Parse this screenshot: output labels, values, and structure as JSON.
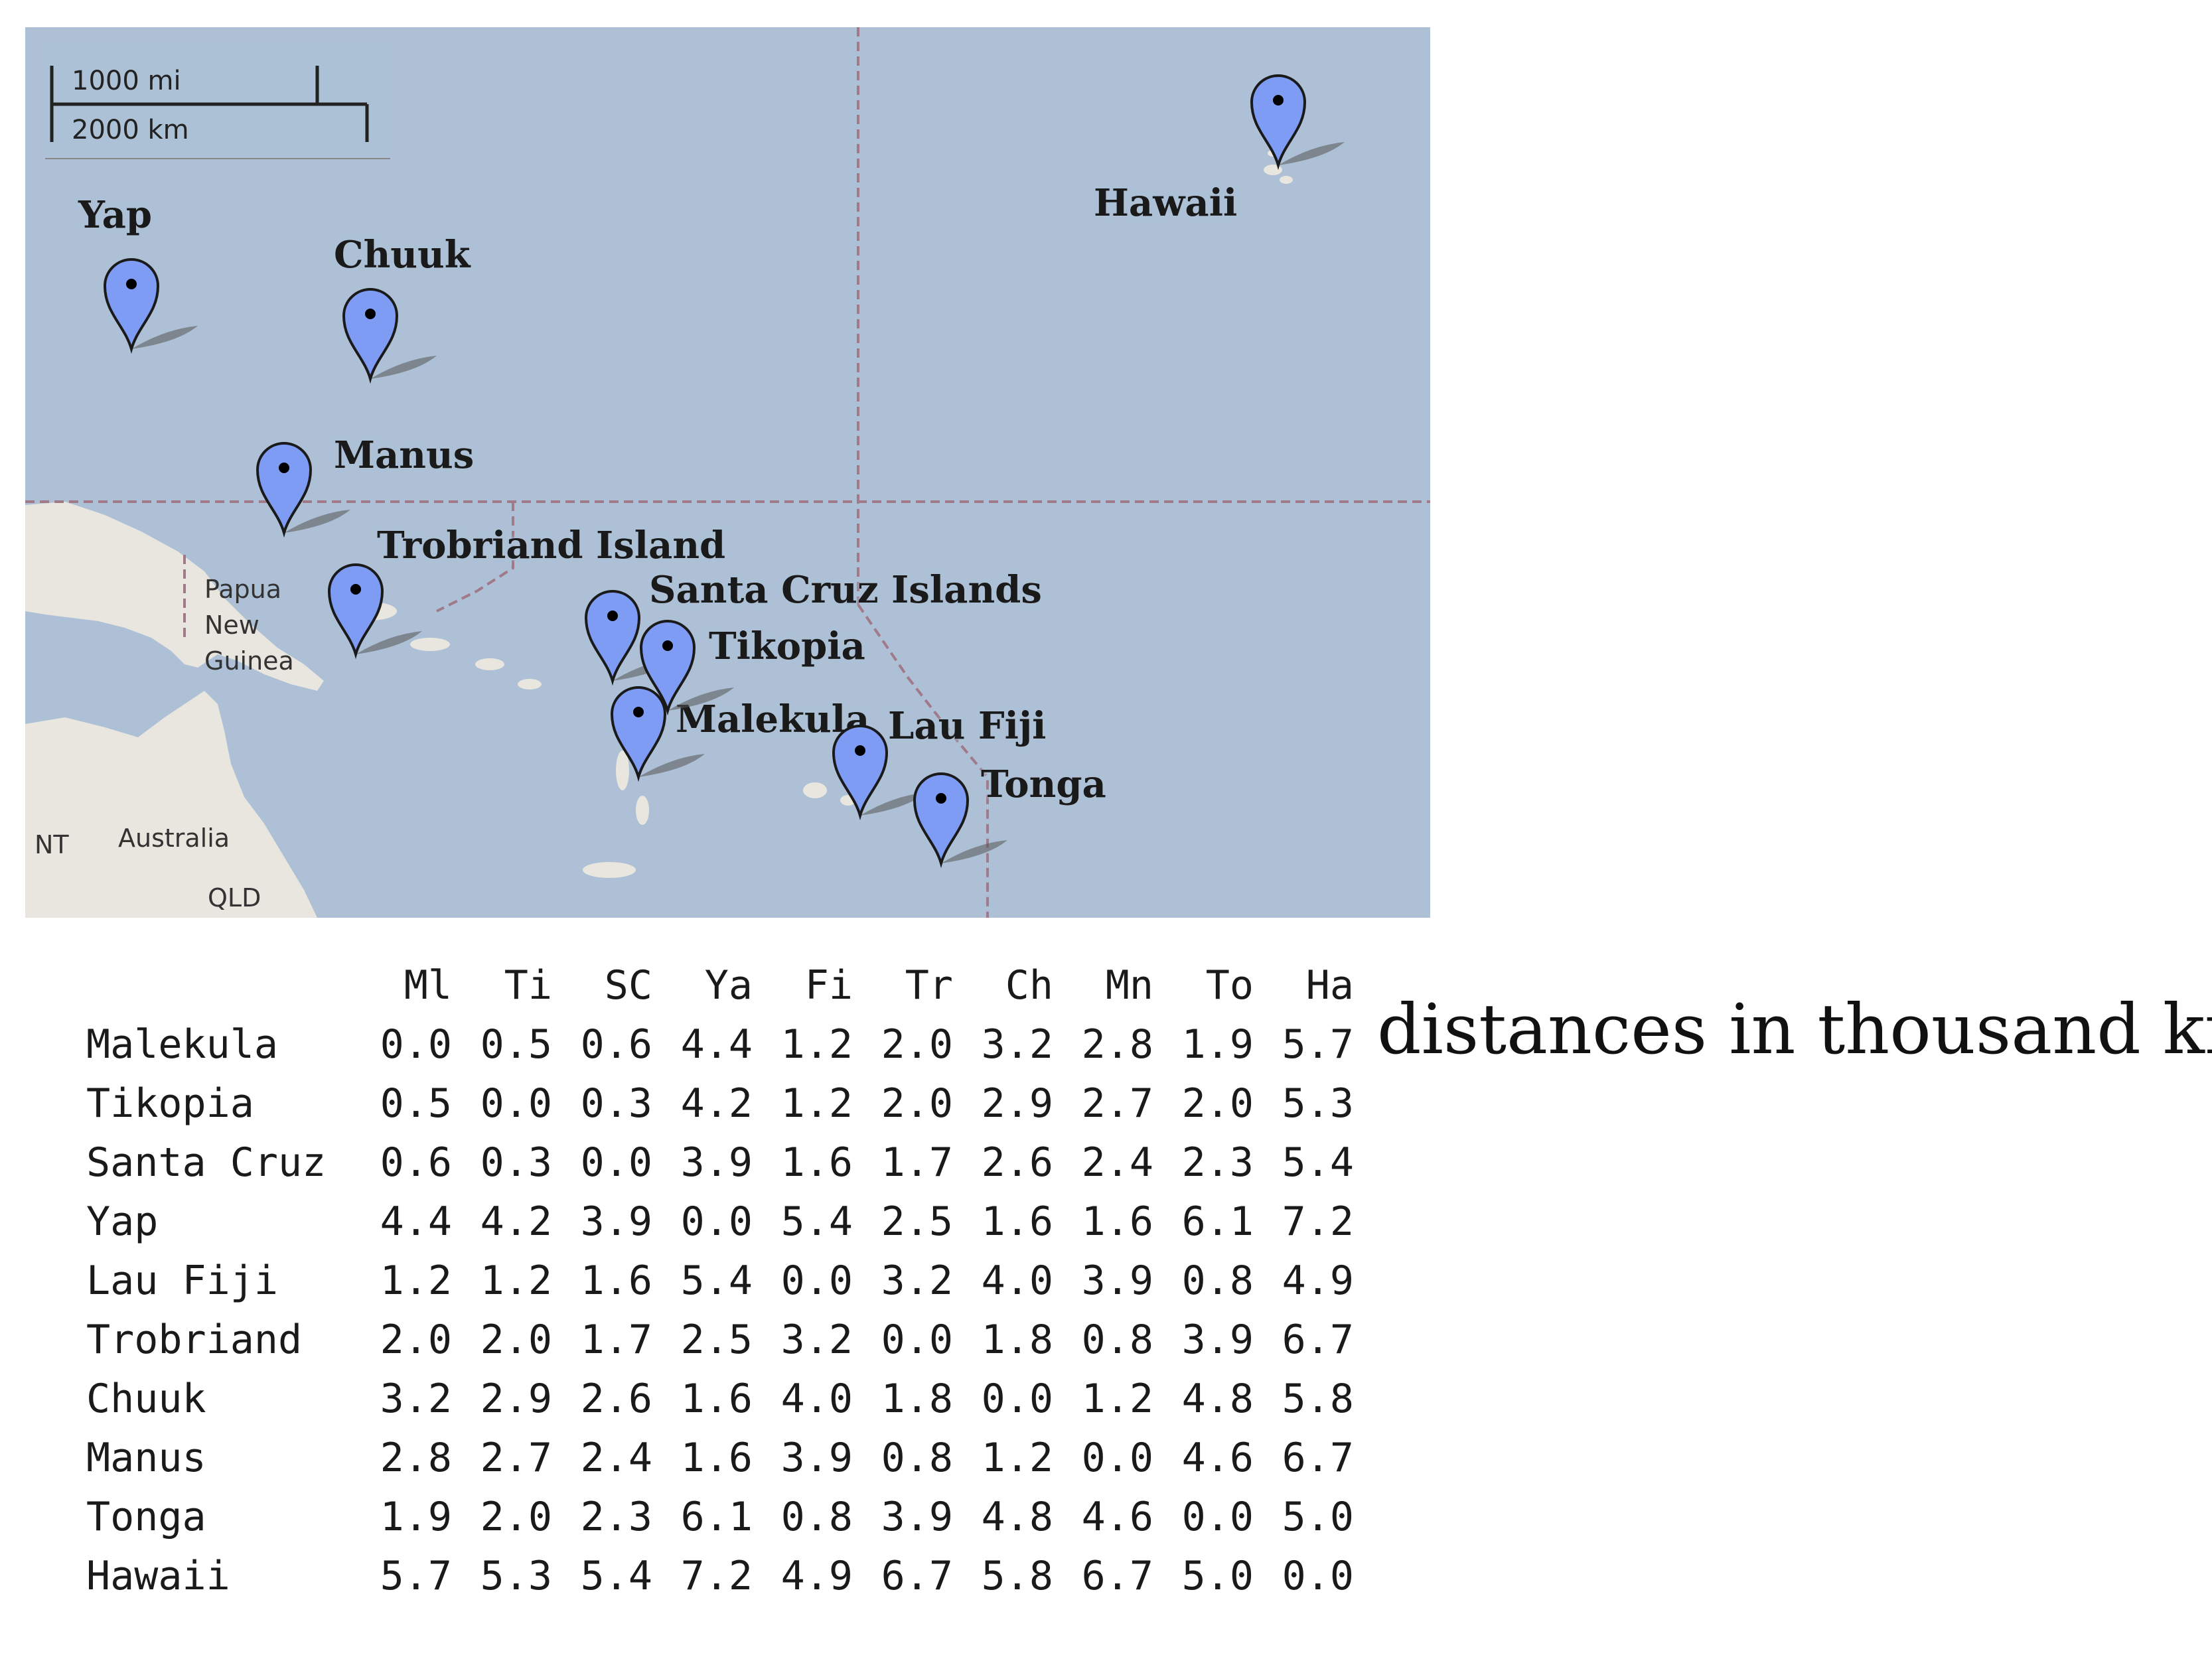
{
  "map": {
    "scale_bar": {
      "miles_label": "1000 mi",
      "km_label": "2000 km"
    },
    "places": {
      "yap": "Yap",
      "chuuk": "Chuuk",
      "manus": "Manus",
      "trobriand": "Trobriand Island",
      "santa_cruz": "Santa Cruz Islands",
      "tikopia": "Tikopia",
      "malekula": "Malekula",
      "lau_fiji": "Lau Fiji",
      "tonga": "Tonga",
      "hawaii": "Hawaii"
    },
    "regions": {
      "png_line1": "Papua",
      "png_line2": "New",
      "png_line3": "Guinea",
      "australia": "Australia",
      "nt": "NT",
      "qld": "QLD"
    },
    "colors": {
      "ocean": "#adc0d6",
      "land": "#e8e6de",
      "marker": "#7f9cf5"
    }
  },
  "distance_table": {
    "columns": [
      "Ml",
      "Ti",
      "SC",
      "Ya",
      "Fi",
      "Tr",
      "Ch",
      "Mn",
      "To",
      "Ha"
    ],
    "rows": [
      {
        "label": "Malekula",
        "values": [
          "0.0",
          "0.5",
          "0.6",
          "4.4",
          "1.2",
          "2.0",
          "3.2",
          "2.8",
          "1.9",
          "5.7"
        ]
      },
      {
        "label": "Tikopia",
        "values": [
          "0.5",
          "0.0",
          "0.3",
          "4.2",
          "1.2",
          "2.0",
          "2.9",
          "2.7",
          "2.0",
          "5.3"
        ]
      },
      {
        "label": "Santa Cruz",
        "values": [
          "0.6",
          "0.3",
          "0.0",
          "3.9",
          "1.6",
          "1.7",
          "2.6",
          "2.4",
          "2.3",
          "5.4"
        ]
      },
      {
        "label": "Yap",
        "values": [
          "4.4",
          "4.2",
          "3.9",
          "0.0",
          "5.4",
          "2.5",
          "1.6",
          "1.6",
          "6.1",
          "7.2"
        ]
      },
      {
        "label": "Lau Fiji",
        "values": [
          "1.2",
          "1.2",
          "1.6",
          "5.4",
          "0.0",
          "3.2",
          "4.0",
          "3.9",
          "0.8",
          "4.9"
        ]
      },
      {
        "label": "Trobriand",
        "values": [
          "2.0",
          "2.0",
          "1.7",
          "2.5",
          "3.2",
          "0.0",
          "1.8",
          "0.8",
          "3.9",
          "6.7"
        ]
      },
      {
        "label": "Chuuk",
        "values": [
          "3.2",
          "2.9",
          "2.6",
          "1.6",
          "4.0",
          "1.8",
          "0.0",
          "1.2",
          "4.8",
          "5.8"
        ]
      },
      {
        "label": "Manus",
        "values": [
          "2.8",
          "2.7",
          "2.4",
          "1.6",
          "3.9",
          "0.8",
          "1.2",
          "0.0",
          "4.6",
          "6.7"
        ]
      },
      {
        "label": "Tonga",
        "values": [
          "1.9",
          "2.0",
          "2.3",
          "6.1",
          "0.8",
          "3.9",
          "4.8",
          "4.6",
          "0.0",
          "5.0"
        ]
      },
      {
        "label": "Hawaii",
        "values": [
          "5.7",
          "5.3",
          "5.4",
          "7.2",
          "4.9",
          "6.7",
          "5.8",
          "6.7",
          "5.0",
          "0.0"
        ]
      }
    ]
  },
  "caption": "distances in thousand km"
}
